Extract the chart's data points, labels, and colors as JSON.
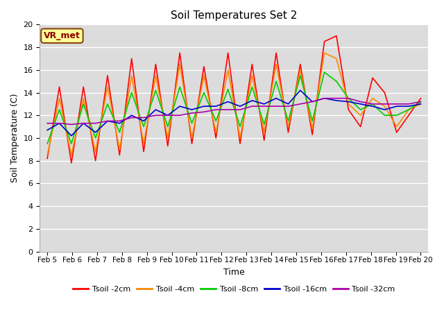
{
  "title": "Soil Temperatures Set 2",
  "xlabel": "Time",
  "ylabel": "Soil Temperature (C)",
  "xlim_labels": [
    "Feb 5",
    "Feb 6",
    "Feb 7",
    "Feb 8",
    "Feb 9",
    "Feb 10",
    "Feb 11",
    "Feb 12",
    "Feb 13",
    "Feb 14",
    "Feb 15",
    "Feb 16",
    "Feb 17",
    "Feb 18",
    "Feb 19",
    "Feb 20"
  ],
  "ylim": [
    0,
    20
  ],
  "yticks": [
    0,
    2,
    4,
    6,
    8,
    10,
    12,
    14,
    16,
    18,
    20
  ],
  "bg_color": "#dcdcdc",
  "annotation_text": "VR_met",
  "annotation_bbox_facecolor": "#ffff99",
  "annotation_text_color": "#8B0000",
  "annotation_bbox_edgecolor": "#8B4513",
  "series": {
    "Tsoil -2cm": {
      "color": "#ff0000",
      "values": [
        8.2,
        14.5,
        7.8,
        14.5,
        8.0,
        15.5,
        8.5,
        17.0,
        8.8,
        16.5,
        9.3,
        17.5,
        9.5,
        16.3,
        10.0,
        17.5,
        9.5,
        16.5,
        9.8,
        17.5,
        10.5,
        16.5,
        10.3,
        18.5,
        19.0,
        12.5,
        11.0,
        15.3,
        14.0,
        10.5,
        12.0,
        13.5
      ]
    },
    "Tsoil -4cm": {
      "color": "#ff8800",
      "values": [
        8.5,
        13.5,
        8.5,
        13.5,
        8.8,
        14.5,
        9.0,
        15.5,
        9.5,
        15.5,
        10.0,
        16.5,
        10.0,
        15.5,
        10.5,
        16.0,
        10.0,
        15.5,
        10.5,
        16.5,
        11.0,
        16.0,
        10.8,
        17.5,
        17.0,
        13.0,
        12.0,
        13.5,
        12.8,
        11.0,
        12.5,
        13.0
      ]
    },
    "Tsoil -8cm": {
      "color": "#00cc00",
      "values": [
        9.5,
        12.5,
        9.5,
        13.0,
        10.0,
        13.0,
        10.5,
        14.0,
        11.0,
        14.2,
        11.0,
        14.5,
        11.3,
        14.0,
        11.5,
        14.3,
        11.0,
        14.5,
        11.2,
        15.0,
        11.5,
        15.5,
        11.5,
        15.8,
        15.0,
        13.5,
        12.5,
        13.0,
        12.0,
        12.0,
        12.5,
        13.2
      ]
    },
    "Tsoil -16cm": {
      "color": "#0000cc",
      "values": [
        10.7,
        11.3,
        10.2,
        11.3,
        10.5,
        11.5,
        11.3,
        12.0,
        11.5,
        12.5,
        12.0,
        12.8,
        12.5,
        12.8,
        12.8,
        13.2,
        12.8,
        13.3,
        13.0,
        13.5,
        13.0,
        14.2,
        13.2,
        13.5,
        13.3,
        13.2,
        13.0,
        12.8,
        12.5,
        12.8,
        12.8,
        13.0
      ]
    },
    "Tsoil -32cm": {
      "color": "#aa00aa",
      "values": [
        11.3,
        11.3,
        11.2,
        11.3,
        11.3,
        11.5,
        11.5,
        11.8,
        11.8,
        12.0,
        12.0,
        12.0,
        12.2,
        12.3,
        12.5,
        12.5,
        12.5,
        12.8,
        12.8,
        12.8,
        12.8,
        13.0,
        13.2,
        13.5,
        13.5,
        13.5,
        13.2,
        13.0,
        13.0,
        13.0,
        13.0,
        13.2
      ]
    }
  },
  "n_points": 32,
  "n_days": 16,
  "figsize": [
    6.4,
    4.8
  ],
  "dpi": 100
}
